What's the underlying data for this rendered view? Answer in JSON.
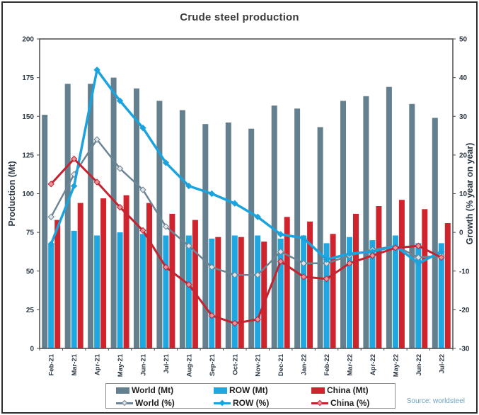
{
  "chart_data": {
    "type": "combo-bar-line",
    "title": "Crude steel production",
    "source": "Source: worldsteel",
    "categories": [
      "Feb-21",
      "Mar-21",
      "Apr-21",
      "May-21",
      "Jun-21",
      "Jul-21",
      "Aug-21",
      "Sep-21",
      "Oct-21",
      "Nov-21",
      "Dec-21",
      "Jan-22",
      "Feb-22",
      "Mar-22",
      "Apr-22",
      "May-22",
      "Jun-22",
      "Jul-22"
    ],
    "left_axis": {
      "title": "Production (Mt)",
      "min": 0,
      "max": 200,
      "step": 25
    },
    "right_axis": {
      "title": "Growth (% year on year)",
      "min": -30,
      "max": 50,
      "step": 10
    },
    "bar_series": [
      {
        "name": "World (Mt)",
        "axis": "left",
        "color": "#64808f",
        "values": [
          151,
          171,
          171,
          175,
          168,
          160,
          154,
          145,
          146,
          142,
          157,
          155,
          143,
          160,
          163,
          169,
          158,
          149
        ]
      },
      {
        "name": "ROW (Mt)",
        "axis": "left",
        "color": "#1ea7e0",
        "values": [
          67,
          76,
          73,
          75,
          74,
          73,
          73,
          71,
          73,
          73,
          71,
          73,
          68,
          72,
          70,
          73,
          68,
          68
        ]
      },
      {
        "name": "China (Mt)",
        "axis": "left",
        "color": "#cf242e",
        "values": [
          83,
          94,
          97,
          99,
          94,
          87,
          83,
          72,
          72,
          69,
          85,
          82,
          74,
          87,
          92,
          96,
          90,
          81
        ]
      }
    ],
    "line_series": [
      {
        "name": "World (%)",
        "axis": "right",
        "color": "#6d8493",
        "marker_fill": "#dfe4e8",
        "width": 2.5,
        "values": [
          4,
          15,
          24,
          16.5,
          11,
          1.5,
          -3.5,
          -9,
          -11,
          -11,
          -5,
          -8,
          -8,
          -6,
          -4.5,
          -3.5,
          -6.5,
          -6
        ]
      },
      {
        "name": "ROW (%)",
        "axis": "right",
        "color": "#1aa3dd",
        "marker_fill": "#1aa3dd",
        "width": 3.5,
        "values": [
          -3,
          12,
          42,
          34,
          27,
          18,
          12,
          10,
          7.5,
          4,
          -0.5,
          -1.5,
          -7,
          -5.5,
          -5,
          -3.5,
          -8,
          -5
        ]
      },
      {
        "name": "China (%)",
        "axis": "right",
        "color": "#c32430",
        "marker_fill": "#e8949a",
        "width": 3,
        "values": [
          12.5,
          19,
          13,
          6.5,
          0.5,
          -9,
          -13.5,
          -21.5,
          -23.5,
          -22.5,
          -7.5,
          -11.5,
          -12,
          -8,
          -6,
          -4,
          -3.5,
          -6.5
        ]
      }
    ],
    "legend": {
      "position": "bottom",
      "items": [
        {
          "label": "World (Mt)",
          "type": "bar",
          "color": "#64808f"
        },
        {
          "label": "ROW (Mt)",
          "type": "bar",
          "color": "#1ea7e0"
        },
        {
          "label": "China (Mt)",
          "type": "bar",
          "color": "#cf242e"
        },
        {
          "label": "World (%)",
          "type": "line",
          "color": "#6d8493",
          "marker_fill": "#dfe4e8"
        },
        {
          "label": "ROW (%)",
          "type": "line",
          "color": "#1aa3dd",
          "marker_fill": "#1aa3dd"
        },
        {
          "label": "China (%)",
          "type": "line",
          "color": "#c32430",
          "marker_fill": "#e8949a"
        }
      ]
    }
  }
}
